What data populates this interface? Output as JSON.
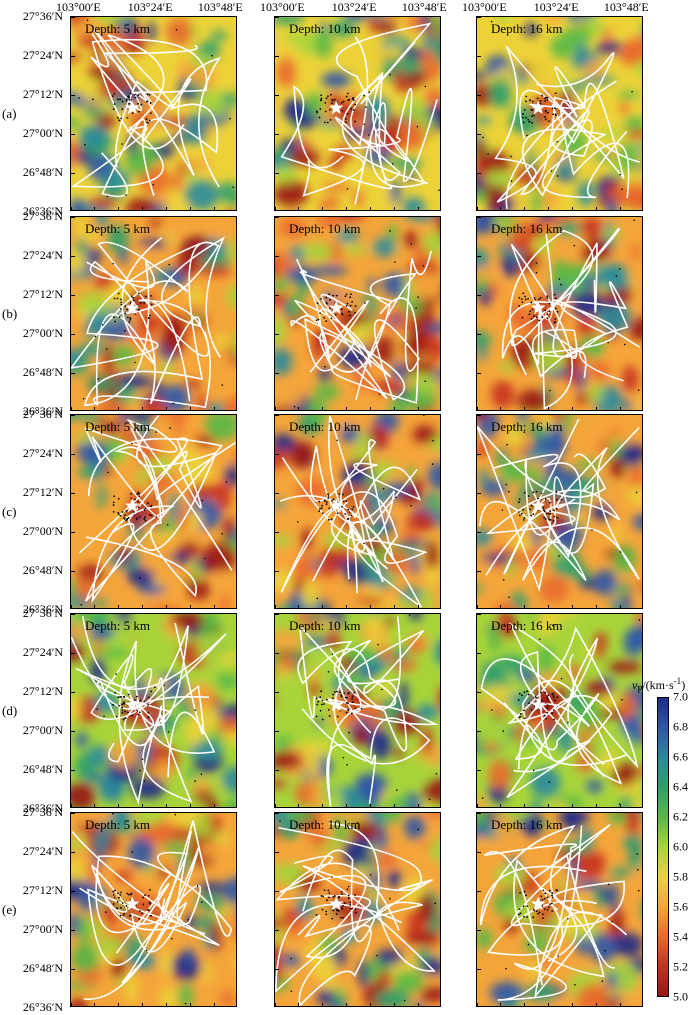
{
  "x_ticks": [
    "103°00′E",
    "103°24′E",
    "103°48′E"
  ],
  "y_ticks": [
    "27°36′N",
    "27°24′N",
    "27°12′N",
    "27°00′N",
    "26°48′N",
    "26°36′N"
  ],
  "rows": [
    {
      "label": "(a)",
      "depths": [
        "Depth: 5 km",
        "Depth: 10 km",
        "Depth: 16 km"
      ]
    },
    {
      "label": "(b)",
      "depths": [
        "Depth: 5 km",
        "Depth: 10 km",
        "Depth: 16 km"
      ]
    },
    {
      "label": "(c)",
      "depths": [
        "Depth: 5 km",
        "Depth: 10 km",
        "Depth: 16 km"
      ]
    },
    {
      "label": "(d)",
      "depths": [
        "Depth: 5 km",
        "Depth: 10 km",
        "Depth: 16 km"
      ]
    },
    {
      "label": "(e)",
      "depths": [
        "Depth: 5 km",
        "Depth: 10 km",
        "Depth: 16 km"
      ]
    }
  ],
  "colorbar": {
    "title_main": "v",
    "title_sub": "P",
    "title_unit": "/(km·s",
    "title_exp": "-1",
    "title_close": ")",
    "ticks": [
      "7.0",
      "6.8",
      "6.6",
      "6.4",
      "6.2",
      "6.0",
      "5.8",
      "5.6",
      "5.4",
      "5.2",
      "5.0"
    ],
    "min": 5.0,
    "max": 7.0
  },
  "colors": {
    "low": "#9a1414",
    "mid": "#ecd238",
    "high": "#1e2a8a",
    "contour": "#ffffff",
    "star": "#ffffff",
    "events": "#000000"
  }
}
